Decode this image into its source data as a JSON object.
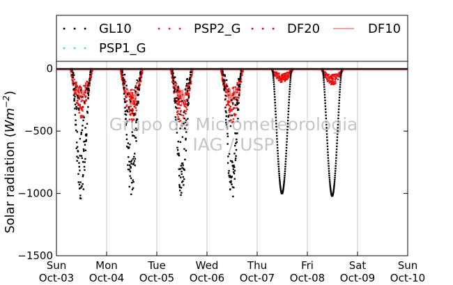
{
  "chart_data": {
    "type": "scatter",
    "title": "",
    "xlabel": "",
    "ylabel_prefix": "Solar radiation (",
    "ylabel_unit": "Wm",
    "ylabel_exponent": "−2",
    "ylabel_suffix": ")",
    "ylim": [
      -1500,
      60
    ],
    "yticks": [
      0,
      -500,
      -1000,
      -1500
    ],
    "ytick_labels": [
      "0",
      "−500",
      "−1000",
      "−1500"
    ],
    "xlim": [
      0,
      7
    ],
    "x_unit": "days since Sun Oct-03 00:00",
    "xtick_days": [
      0,
      1,
      2,
      3,
      4,
      5,
      6,
      7
    ],
    "xtick_labels_line1": [
      "Sun",
      "Mon",
      "Tue",
      "Wed",
      "Thu",
      "Fri",
      "Sat",
      "Sun"
    ],
    "xtick_labels_line2": [
      "Oct-03",
      "Oct-04",
      "Oct-05",
      "Oct-06",
      "Oct-07",
      "Oct-08",
      "Oct-09",
      "Oct-10"
    ],
    "grid_x": true,
    "grid_y": false,
    "zero_line": true,
    "legend_placement": "top, outside",
    "series": [
      {
        "name": "GL10",
        "color": "#000000",
        "marker": "dot"
      },
      {
        "name": "PSP2_G",
        "color": "#d62728",
        "marker": "dot"
      },
      {
        "name": "DF20",
        "color": "#ff0000",
        "marker": "dot"
      },
      {
        "name": "DF10",
        "color": "#f08080",
        "marker": "line"
      },
      {
        "name": "PSP1_G",
        "color": "#40e0d0",
        "marker": "dot"
      }
    ],
    "days": [
      {
        "gl_peak": -1100,
        "gl_scatter": 0.55,
        "red_peak": -400,
        "pink_peak": -260
      },
      {
        "gl_peak": -1050,
        "gl_scatter": 0.55,
        "red_peak": -450,
        "pink_peak": -310
      },
      {
        "gl_peak": -1050,
        "gl_scatter": 0.55,
        "red_peak": -460,
        "pink_peak": -300
      },
      {
        "gl_peak": -1060,
        "gl_scatter": 0.55,
        "red_peak": -430,
        "pink_peak": -280
      },
      {
        "gl_peak": -1000,
        "gl_scatter": 0.1,
        "red_peak": -110,
        "pink_peak": -90
      },
      {
        "gl_peak": -1020,
        "gl_scatter": 0.1,
        "red_peak": -130,
        "pink_peak": -90
      }
    ],
    "watermark_line1": "Grupo de Micrometeorologia",
    "watermark_line2": "IAG / USP"
  }
}
